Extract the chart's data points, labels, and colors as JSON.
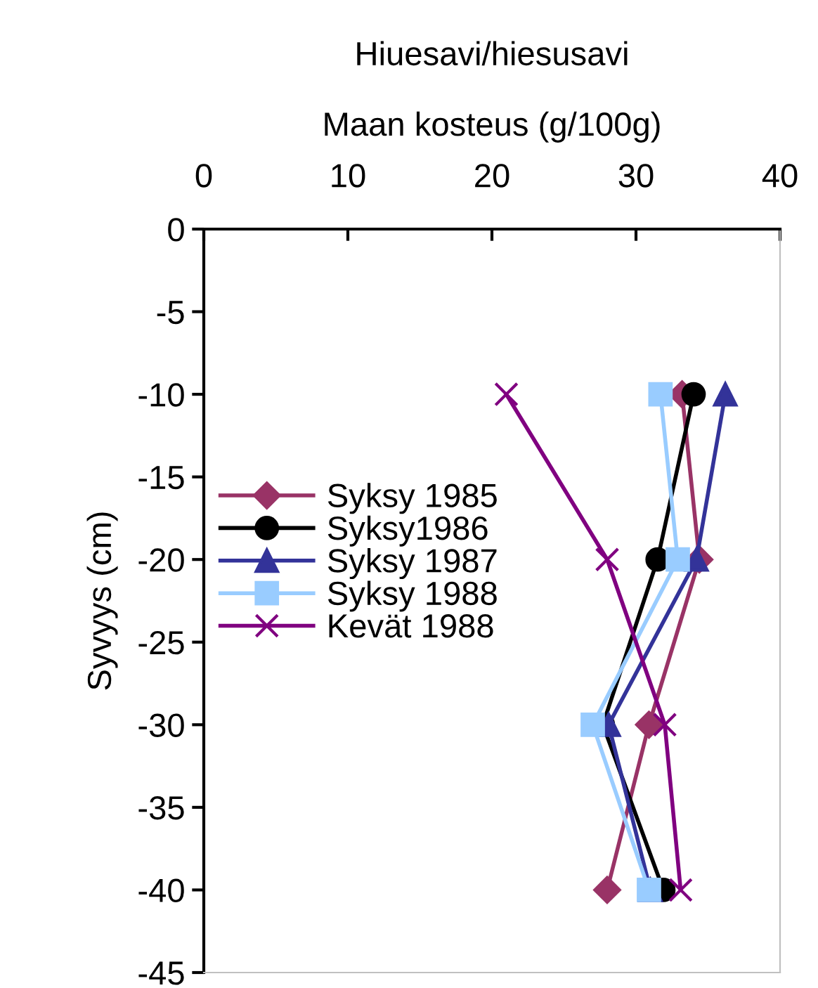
{
  "chart_data": {
    "type": "line",
    "title": "Hiuesavi/hiesusavi",
    "xlabel": "Maan kosteus (g/100g)",
    "ylabel": "Syvyys (cm)",
    "xlim": [
      0,
      40
    ],
    "xticks": [
      0,
      10,
      20,
      30,
      40
    ],
    "ylim": [
      -45,
      0
    ],
    "yticks": [
      0,
      -5,
      -10,
      -15,
      -20,
      -25,
      -30,
      -35,
      -40,
      -45
    ],
    "grid": false,
    "legend": "left",
    "line_style": "solid",
    "series": [
      {
        "name": "Syksy 1985",
        "color": "#993366",
        "marker": "diamond",
        "x": [
          33.2,
          34.4,
          30.9,
          28.0
        ],
        "values": [
          -10,
          -20,
          -30,
          -40
        ]
      },
      {
        "name": "Syksy1986",
        "color": "#000000",
        "marker": "circle",
        "x": [
          34.0,
          31.5,
          27.7,
          31.9
        ],
        "values": [
          -10,
          -20,
          -30,
          -40
        ]
      },
      {
        "name": "Syksy 1987",
        "color": "#333399",
        "marker": "triangle",
        "x": [
          36.2,
          34.2,
          28.1,
          31.0
        ],
        "values": [
          -10,
          -20,
          -30,
          -40
        ]
      },
      {
        "name": "Syksy 1988",
        "color": "#99ccff",
        "marker": "square",
        "x": [
          31.7,
          32.9,
          27.0,
          30.9
        ],
        "values": [
          -10,
          -20,
          -30,
          -40
        ]
      },
      {
        "name": "Kevät 1988",
        "color": "#800080",
        "marker": "cross",
        "x": [
          21.0,
          28.0,
          32.0,
          33.1
        ],
        "values": [
          -10,
          -20,
          -30,
          -40
        ]
      }
    ]
  }
}
